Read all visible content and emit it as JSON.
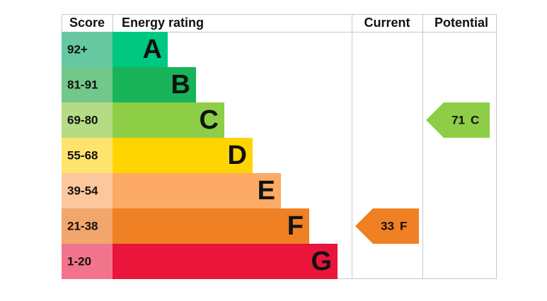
{
  "headers": {
    "score": "Score",
    "rating": "Energy rating",
    "current": "Current",
    "potential": "Potential"
  },
  "bands": [
    {
      "score": "92+",
      "letter": "A",
      "color": "#00c781",
      "score_color": "#66c8a0"
    },
    {
      "score": "81-91",
      "letter": "B",
      "color": "#19b459",
      "score_color": "#72c88a"
    },
    {
      "score": "69-80",
      "letter": "C",
      "color": "#8dce46",
      "score_color": "#b5dc85"
    },
    {
      "score": "55-68",
      "letter": "D",
      "color": "#ffd500",
      "score_color": "#fde46c"
    },
    {
      "score": "39-54",
      "letter": "E",
      "color": "#fcaa65",
      "score_color": "#fdc79d"
    },
    {
      "score": "21-38",
      "letter": "F",
      "color": "#ef8023",
      "score_color": "#f3a66c"
    },
    {
      "score": "1-20",
      "letter": "G",
      "color": "#e9153b",
      "score_color": "#f2748c"
    }
  ],
  "current": {
    "value": 33,
    "band": "F"
  },
  "potential": {
    "value": 71,
    "band": "C"
  }
}
